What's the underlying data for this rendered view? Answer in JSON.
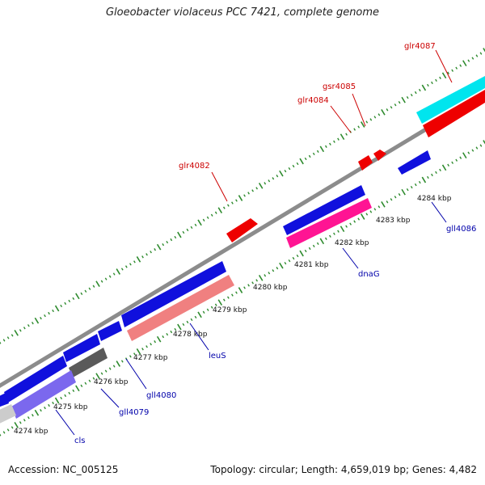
{
  "title": "Gloeobacter violaceus PCC 7421, complete genome",
  "accession_text": "Accession: NC_005125",
  "summary_text": "Topology: circular; Length: 4,659,019 bp; Genes: 4,482",
  "colors": {
    "backbone": "#8c8c8c",
    "tick": "#2e8b2e",
    "forward_label": "#cc0000",
    "reverse_label": "#0000aa"
  },
  "diagram": {
    "tick_labels": [
      {
        "text": "4274 kbp"
      },
      {
        "text": "4275 kbp"
      },
      {
        "text": "4276 kbp"
      },
      {
        "text": "4277 kbp"
      },
      {
        "text": "4278 kbp"
      },
      {
        "text": "4279 kbp"
      },
      {
        "text": "4280 kbp"
      },
      {
        "text": "4281 kbp"
      },
      {
        "text": "4282 kbp"
      },
      {
        "text": "4283 kbp"
      },
      {
        "text": "4284 kbp"
      }
    ],
    "gene_labels": [
      {
        "text": "glr4087",
        "strand": "forward"
      },
      {
        "text": "gsr4085",
        "strand": "forward"
      },
      {
        "text": "glr4084",
        "strand": "forward"
      },
      {
        "text": "glr4082",
        "strand": "forward"
      },
      {
        "text": "gll4086",
        "strand": "reverse"
      },
      {
        "text": "dnaG",
        "strand": "reverse"
      },
      {
        "text": "leuS",
        "strand": "reverse"
      },
      {
        "text": "gll4080",
        "strand": "reverse"
      },
      {
        "text": "gll4079",
        "strand": "reverse"
      },
      {
        "text": "cls",
        "strand": "reverse"
      }
    ]
  }
}
